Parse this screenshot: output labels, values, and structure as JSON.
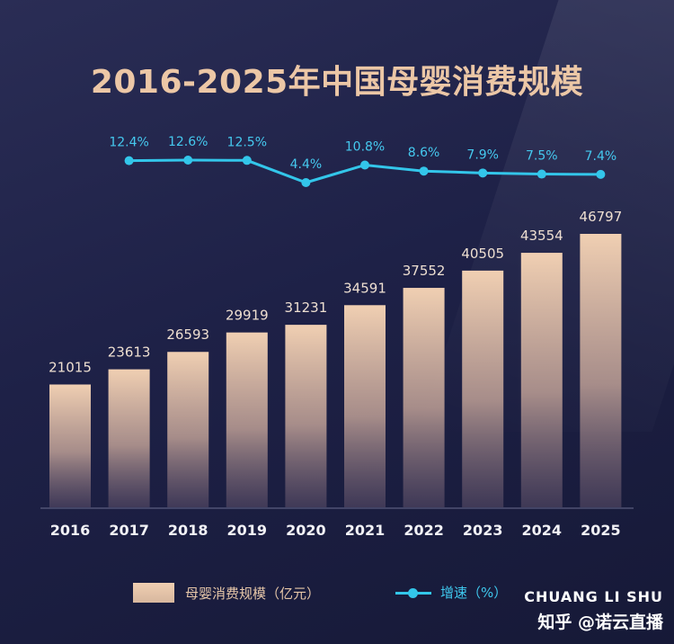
{
  "title": "2016-2025年中国母婴消费规模",
  "legend": {
    "bar_label": "母婴消费规模（亿元）",
    "line_label": "增速（%）"
  },
  "watermark": {
    "brand": "CHUANG LI SHU",
    "sub": "知乎 @诺云直播"
  },
  "colors": {
    "bar_top": "#f0cfb2",
    "bar_bottom": "#6a5a6e",
    "line": "#33c6ea",
    "bar_label": "#eedfd1",
    "line_label": "#45c9ef",
    "title": "#ecc7a6"
  },
  "chart_data": {
    "type": "bar+line",
    "title": "2016-2025年中国母婴消费规模",
    "categories": [
      "2016",
      "2017",
      "2018",
      "2019",
      "2020",
      "2021",
      "2022",
      "2023",
      "2024",
      "2025"
    ],
    "series": [
      {
        "name": "母婴消费规模（亿元）",
        "type": "bar",
        "values": [
          21015,
          23613,
          26593,
          29919,
          31231,
          34591,
          37552,
          40505,
          43554,
          46797
        ]
      },
      {
        "name": "增速（%）",
        "type": "line",
        "values": [
          null,
          12.4,
          12.6,
          12.5,
          4.4,
          10.8,
          8.6,
          7.9,
          7.5,
          7.4
        ],
        "labels": [
          "",
          "12.4%",
          "12.6%",
          "12.5%",
          "4.4%",
          "10.8%",
          "8.6%",
          "7.9%",
          "7.5%",
          "7.4%"
        ]
      }
    ],
    "grid": false,
    "legend_position": "bottom"
  }
}
